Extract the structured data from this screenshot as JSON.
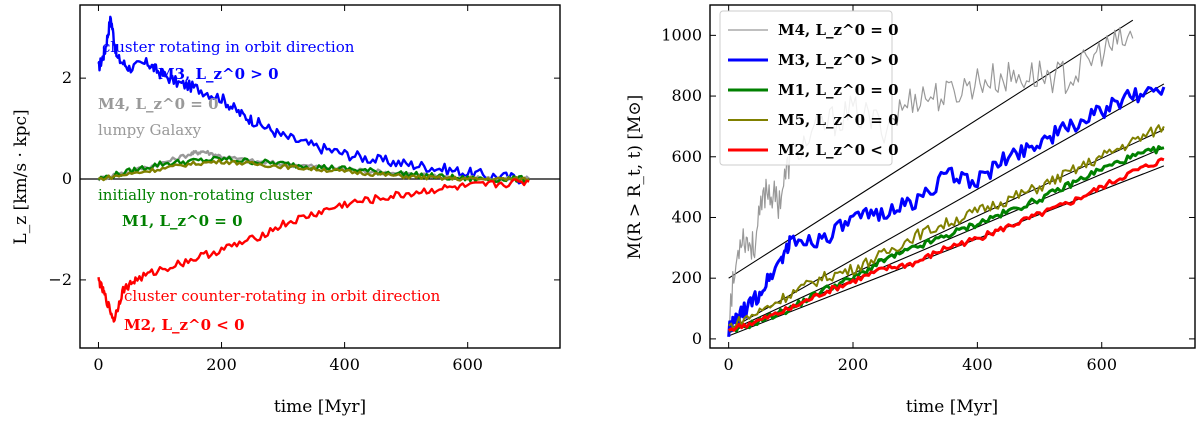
{
  "chart_data": [
    {
      "type": "line",
      "xlabel": "time [Myr]",
      "ylabel": "L_z [km/s · kpc]",
      "xlim": [
        -30,
        750
      ],
      "ylim": [
        -3.35,
        3.45
      ],
      "xticks": [
        0,
        200,
        400,
        600
      ],
      "yticks": [
        -2,
        0,
        2
      ],
      "xtick_labels": [
        "0",
        "200",
        "400",
        "600"
      ],
      "ytick_labels": [
        "−2",
        "0",
        "2"
      ],
      "grid": false,
      "zero_line": true,
      "series": [
        {
          "name": "M3, L_z^0 > 0",
          "color": "#0000ff",
          "x": [
            0,
            10,
            20,
            30,
            50,
            80,
            100,
            130,
            160,
            200,
            230,
            260,
            300,
            350,
            400,
            450,
            500,
            550,
            600,
            650,
            700
          ],
          "y": [
            2.2,
            2.5,
            3.2,
            2.4,
            2.2,
            2.3,
            2.1,
            1.9,
            1.8,
            1.6,
            1.3,
            1.1,
            0.85,
            0.65,
            0.5,
            0.38,
            0.3,
            0.22,
            0.12,
            0.05,
            0.0
          ]
        },
        {
          "name": "M4, L_z^0 = 0",
          "color": "#999999",
          "x": [
            0,
            50,
            100,
            150,
            170,
            200,
            250,
            300,
            350,
            400,
            450,
            500,
            550,
            600,
            650,
            700
          ],
          "y": [
            0.0,
            0.15,
            0.3,
            0.5,
            0.55,
            0.45,
            0.35,
            0.3,
            0.25,
            0.2,
            0.15,
            0.1,
            0.05,
            0.03,
            0.0,
            0.0
          ]
        },
        {
          "name": "M1, L_z^0 = 0",
          "color": "#008000",
          "x": [
            0,
            50,
            100,
            150,
            200,
            250,
            300,
            350,
            400,
            450,
            500,
            550,
            600,
            650,
            700
          ],
          "y": [
            0.0,
            0.15,
            0.3,
            0.35,
            0.4,
            0.35,
            0.3,
            0.25,
            0.2,
            0.15,
            0.1,
            0.05,
            0.0,
            0.0,
            0.0
          ]
        },
        {
          "name": "M5, L_z^0 = 0",
          "color": "#808000",
          "x": [
            0,
            50,
            100,
            150,
            200,
            250,
            300,
            350,
            400,
            450,
            500,
            550,
            600,
            650,
            700
          ],
          "y": [
            0.0,
            0.1,
            0.2,
            0.3,
            0.35,
            0.3,
            0.25,
            0.2,
            0.15,
            0.1,
            0.05,
            0.02,
            0.0,
            0.0,
            0.0
          ]
        },
        {
          "name": "M2, L_z^0 < 0",
          "color": "#ff0000",
          "x": [
            0,
            10,
            25,
            40,
            60,
            100,
            150,
            200,
            250,
            300,
            350,
            400,
            450,
            500,
            550,
            600,
            650,
            700
          ],
          "y": [
            -2.0,
            -2.3,
            -2.8,
            -2.2,
            -2.0,
            -1.8,
            -1.6,
            -1.4,
            -1.2,
            -0.9,
            -0.7,
            -0.5,
            -0.4,
            -0.3,
            -0.2,
            -0.15,
            -0.1,
            -0.05
          ]
        }
      ],
      "annotations": {
        "blue_top": "cluster rotating in orbit direction",
        "m3": "M3, L_z^0 > 0",
        "m4": "M4, L_z^0 = 0",
        "lumpy": "lumpy Galaxy",
        "green_top": "initially non-rotating cluster",
        "m1": "M1, L_z^0 = 0",
        "red_bottom": "cluster counter-rotating in orbit direction",
        "m2": "M2, L_z^0 < 0"
      }
    },
    {
      "type": "line",
      "xlabel": "time [Myr]",
      "ylabel": "M(R > R_t, t) [M⊙]",
      "xlim": [
        -30,
        750
      ],
      "ylim": [
        -30,
        1100
      ],
      "xticks": [
        0,
        200,
        400,
        600
      ],
      "yticks": [
        0,
        200,
        400,
        600,
        800,
        1000
      ],
      "xtick_labels": [
        "0",
        "200",
        "400",
        "600"
      ],
      "ytick_labels": [
        "0",
        "200",
        "400",
        "600",
        "800",
        "1000"
      ],
      "grid": false,
      "legend": "top-left",
      "series": [
        {
          "name": "M4, L_z^0 = 0",
          "color": "#999999",
          "width": 1.2,
          "x": [
            0,
            20,
            40,
            60,
            80,
            100,
            150,
            200,
            250,
            300,
            350,
            400,
            450,
            500,
            550,
            600,
            650
          ],
          "y": [
            80,
            350,
            300,
            500,
            450,
            600,
            700,
            750,
            700,
            800,
            800,
            850,
            860,
            870,
            860,
            950,
            990
          ]
        },
        {
          "name": "M3, L_z^0 > 0",
          "color": "#0000ff",
          "width": 3,
          "x": [
            0,
            20,
            50,
            80,
            100,
            150,
            200,
            250,
            300,
            350,
            400,
            450,
            500,
            550,
            600,
            650,
            700
          ],
          "y": [
            30,
            80,
            150,
            250,
            320,
            330,
            390,
            420,
            450,
            540,
            520,
            600,
            650,
            700,
            750,
            800,
            830
          ]
        },
        {
          "name": "M1, L_z^0 = 0",
          "color": "#008000",
          "width": 3,
          "x": [
            0,
            50,
            100,
            150,
            200,
            250,
            300,
            350,
            400,
            450,
            500,
            550,
            600,
            650,
            700
          ],
          "y": [
            20,
            60,
            100,
            160,
            200,
            260,
            300,
            340,
            380,
            420,
            460,
            510,
            560,
            600,
            630
          ]
        },
        {
          "name": "M5, L_z^0 = 0",
          "color": "#808000",
          "width": 2,
          "x": [
            0,
            50,
            100,
            150,
            200,
            250,
            300,
            350,
            400,
            450,
            500,
            550,
            600,
            650,
            700
          ],
          "y": [
            40,
            90,
            150,
            200,
            230,
            280,
            340,
            380,
            420,
            460,
            500,
            550,
            600,
            650,
            700
          ]
        },
        {
          "name": "M2, L_z^0 < 0",
          "color": "#ff0000",
          "width": 3,
          "x": [
            0,
            50,
            100,
            150,
            200,
            250,
            300,
            350,
            400,
            450,
            500,
            550,
            600,
            650,
            700
          ],
          "y": [
            30,
            60,
            100,
            150,
            190,
            230,
            250,
            300,
            330,
            370,
            410,
            450,
            500,
            550,
            590
          ]
        }
      ],
      "fit_lines": [
        {
          "x": [
            0,
            650
          ],
          "y": [
            200,
            1050
          ]
        },
        {
          "x": [
            0,
            700
          ],
          "y": [
            30,
            840
          ]
        },
        {
          "x": [
            0,
            700
          ],
          "y": [
            25,
            690
          ]
        },
        {
          "x": [
            0,
            700
          ],
          "y": [
            20,
            630
          ]
        },
        {
          "x": [
            0,
            700
          ],
          "y": [
            10,
            570
          ]
        }
      ]
    }
  ]
}
